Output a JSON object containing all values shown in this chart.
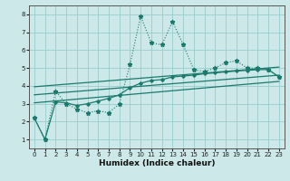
{
  "xlabel": "Humidex (Indice chaleur)",
  "bg_color": "#cce8e8",
  "grid_color": "#99cccc",
  "line_color": "#1a7a6e",
  "xlim": [
    -0.5,
    23.5
  ],
  "ylim": [
    0.5,
    8.5
  ],
  "yticks": [
    1,
    2,
    3,
    4,
    5,
    6,
    7,
    8
  ],
  "xticks": [
    0,
    1,
    2,
    3,
    4,
    5,
    6,
    7,
    8,
    9,
    10,
    11,
    12,
    13,
    14,
    15,
    16,
    17,
    18,
    19,
    20,
    21,
    22,
    23
  ],
  "spiky_x": [
    0,
    1,
    2,
    3,
    4,
    5,
    6,
    7,
    8,
    9,
    10,
    11,
    12,
    13,
    14,
    15,
    16,
    17,
    18,
    19,
    20,
    21,
    22,
    23
  ],
  "spiky_y": [
    2.2,
    1.0,
    3.7,
    3.0,
    2.7,
    2.5,
    2.6,
    2.5,
    3.0,
    5.2,
    7.9,
    6.4,
    6.3,
    7.6,
    6.3,
    4.9,
    4.8,
    5.0,
    5.3,
    5.4,
    5.0,
    5.0,
    4.9,
    4.5
  ],
  "smooth_x": [
    0,
    1,
    2,
    3,
    4,
    5,
    6,
    7,
    8,
    9,
    10,
    11,
    12,
    13,
    14,
    15,
    16,
    17,
    18,
    19,
    20,
    21,
    22,
    23
  ],
  "smooth_y": [
    2.2,
    1.0,
    3.1,
    3.05,
    2.9,
    3.0,
    3.15,
    3.3,
    3.5,
    3.9,
    4.15,
    4.3,
    4.35,
    4.5,
    4.55,
    4.6,
    4.68,
    4.73,
    4.78,
    4.83,
    4.87,
    4.9,
    4.92,
    4.5
  ],
  "line1_x": [
    0,
    23
  ],
  "line1_y": [
    3.5,
    4.6
  ],
  "line2_x": [
    0,
    23
  ],
  "line2_y": [
    3.95,
    5.05
  ],
  "line3_x": [
    0,
    23
  ],
  "line3_y": [
    3.05,
    4.25
  ]
}
